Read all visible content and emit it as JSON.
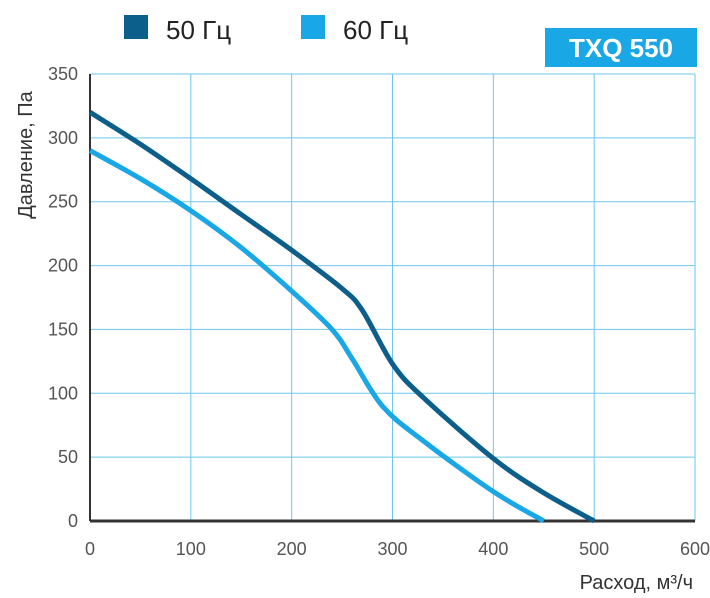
{
  "chart_data": {
    "type": "line",
    "badge": "TXQ 550",
    "xlabel": "Расход, м³/ч",
    "ylabel": "Давление, Па",
    "xlim": [
      0,
      600
    ],
    "ylim": [
      0,
      350
    ],
    "x_ticks": [
      "0",
      "100",
      "200",
      "300",
      "400",
      "500",
      "600"
    ],
    "y_ticks": [
      "0",
      "50",
      "100",
      "150",
      "200",
      "250",
      "300",
      "350"
    ],
    "grid": true,
    "legend_position": "top-left",
    "series": [
      {
        "name": "50 Гц",
        "color": "#0b5f8a",
        "x": [
          0,
          50,
          100,
          150,
          200,
          250,
          270,
          300,
          330,
          400,
          450,
          500
        ],
        "y": [
          320,
          295,
          268,
          240,
          212,
          182,
          165,
          123,
          97,
          49,
          22,
          0
        ]
      },
      {
        "name": "60 Гц",
        "color": "#1aa7e6",
        "x": [
          0,
          50,
          100,
          150,
          200,
          240,
          260,
          290,
          330,
          400,
          450
        ],
        "y": [
          290,
          268,
          243,
          214,
          180,
          150,
          127,
          90,
          63,
          23,
          0
        ]
      }
    ],
    "badge_color": "#1aa7e6",
    "grid_color": "#6ec6ee",
    "axis_color": "#333333"
  }
}
